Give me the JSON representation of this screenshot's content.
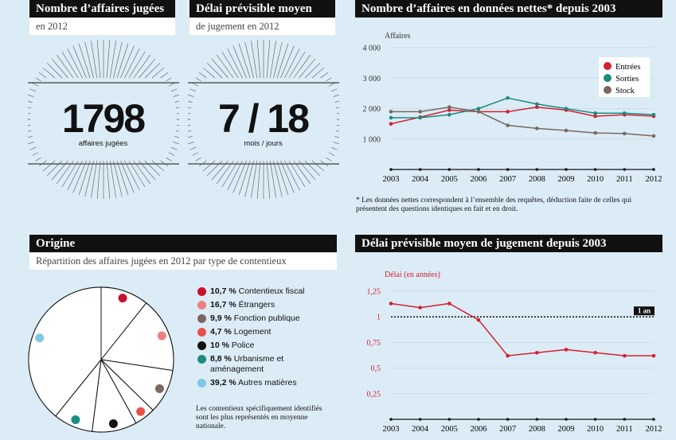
{
  "kpi1": {
    "title": "Nombre d’affaires jugées",
    "subtitle": "en 2012",
    "value": "1798",
    "unit": "affaires jugées"
  },
  "kpi2": {
    "title": "Délai prévisible moyen",
    "subtitle": "de jugement en 2012",
    "value": "7 / 18",
    "unit": "mois / jours"
  },
  "origin": {
    "title": "Origine",
    "subtitle": "Répartition des affaires jugées en 2012 par type de contentieux",
    "footnote": "Les contentieux spécifiquement identifiés sont les plus représentés en moyenne nationale."
  },
  "colors": {
    "entrees": "#d42030",
    "sorties": "#1a8c80",
    "stock": "#7a6860"
  },
  "chart_data": [
    {
      "type": "line",
      "title": "Nombre d’affaires en données nettes* depuis 2003",
      "ylabel": "Affaires",
      "x": [
        2003,
        2004,
        2005,
        2006,
        2007,
        2008,
        2009,
        2010,
        2011,
        2012
      ],
      "yticks": [
        "1 000",
        "2 000",
        "3 000",
        "4 000"
      ],
      "ylim": [
        0,
        4000
      ],
      "series": [
        {
          "name": "Entrées",
          "color": "#d42030",
          "values": [
            1500,
            1720,
            1950,
            1900,
            1900,
            2050,
            1950,
            1750,
            1800,
            1750
          ]
        },
        {
          "name": "Sorties",
          "color": "#1a8c80",
          "values": [
            1700,
            1700,
            1800,
            2000,
            2350,
            2150,
            2000,
            1850,
            1850,
            1800
          ]
        },
        {
          "name": "Stock",
          "color": "#7a6860",
          "values": [
            1900,
            1900,
            2050,
            1900,
            1450,
            1350,
            1280,
            1200,
            1180,
            1100
          ]
        }
      ],
      "footnote": "* Les données nettes correspondent à l’ensemble des requêtes, déduction faite de celles qui présentent des questions identiques en fait et en droit."
    },
    {
      "type": "pie",
      "slices": [
        {
          "label": "Contentieux fiscal",
          "pct": "10,7 %",
          "value": 10.7,
          "color": "#c8102e"
        },
        {
          "label": "Étrangers",
          "pct": "16,7 %",
          "value": 16.7,
          "color": "#f08080"
        },
        {
          "label": "Fonction publique",
          "pct": "9,9 %",
          "value": 9.9,
          "color": "#7a6860"
        },
        {
          "label": "Logement",
          "pct": "4,7 %",
          "value": 4.7,
          "color": "#e8504a"
        },
        {
          "label": "Police",
          "pct": "10 %",
          "value": 10,
          "color": "#111111"
        },
        {
          "label": "Urbanisme et aménagement",
          "pct": "8,8 %",
          "value": 8.8,
          "color": "#1a8c80"
        },
        {
          "label": "Autres matières",
          "pct": "39,2 %",
          "value": 39.2,
          "color": "#7ec8e3"
        }
      ]
    },
    {
      "type": "line",
      "title": "Délai prévisible moyen de jugement depuis 2003",
      "ylabel": "Délai (en années)",
      "x": [
        2003,
        2004,
        2005,
        2006,
        2007,
        2008,
        2009,
        2010,
        2011,
        2012
      ],
      "yticks": [
        "0,25",
        "0,5",
        "0,75",
        "1",
        "1,25"
      ],
      "ylim": [
        0,
        1.25
      ],
      "reference": {
        "value": 1,
        "label": "1 an"
      },
      "series": [
        {
          "name": "Délai",
          "color": "#d42030",
          "values": [
            1.13,
            1.09,
            1.13,
            0.97,
            0.62,
            0.65,
            0.68,
            0.65,
            0.62,
            0.62
          ]
        }
      ]
    }
  ]
}
